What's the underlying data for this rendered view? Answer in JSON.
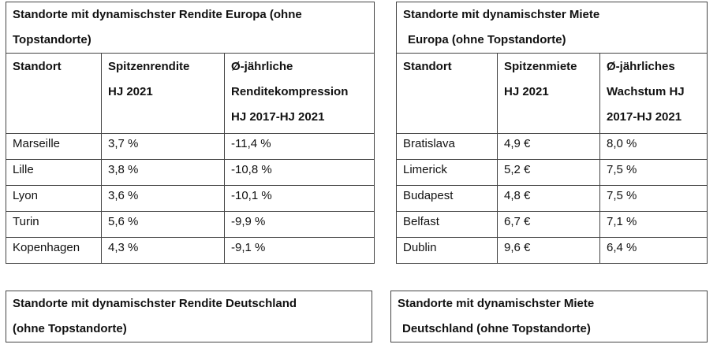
{
  "table_rendite_europa": {
    "title_line1": "Standorte mit dynamischster Rendite Europa (ohne",
    "title_line2": "Topstandorte)",
    "headers": [
      [
        "Standort"
      ],
      [
        "Spitzenrendite",
        "HJ 2021"
      ],
      [
        "Ø-jährliche",
        "Renditekompression",
        "HJ 2017-HJ 2021"
      ]
    ],
    "rows": [
      [
        "Marseille",
        "3,7 %",
        "-11,4 %"
      ],
      [
        "Lille",
        "3,8 %",
        "-10,8 %"
      ],
      [
        "Lyon",
        "3,6 %",
        "-10,1 %"
      ],
      [
        "Turin",
        "5,6 %",
        "-9,9 %"
      ],
      [
        "Kopenhagen",
        "4,3 %",
        "-9,1 %"
      ]
    ]
  },
  "table_miete_europa": {
    "title_line1": "Standorte mit dynamischster Miete",
    "title_line2": "Europa (ohne Topstandorte)",
    "headers": [
      [
        "Standort"
      ],
      [
        "Spitzenmiete",
        "HJ 2021"
      ],
      [
        "Ø-jährliches",
        "Wachstum HJ",
        "2017-HJ 2021"
      ]
    ],
    "rows": [
      [
        "Bratislava",
        "4,9 €",
        "8,0 %"
      ],
      [
        "Limerick",
        "5,2 €",
        "7,5 %"
      ],
      [
        "Budapest",
        "4,8 €",
        "7,5 %"
      ],
      [
        "Belfast",
        "6,7 €",
        "7,1 %"
      ],
      [
        "Dublin",
        "9,6 €",
        "6,4 %"
      ]
    ]
  },
  "table_rendite_deutschland": {
    "title_line1": "Standorte mit dynamischster Rendite Deutschland",
    "title_line2": "(ohne Topstandorte)"
  },
  "table_miete_deutschland": {
    "title_line1": "Standorte mit dynamischster Miete",
    "title_line2": "Deutschland (ohne Topstandorte)"
  }
}
